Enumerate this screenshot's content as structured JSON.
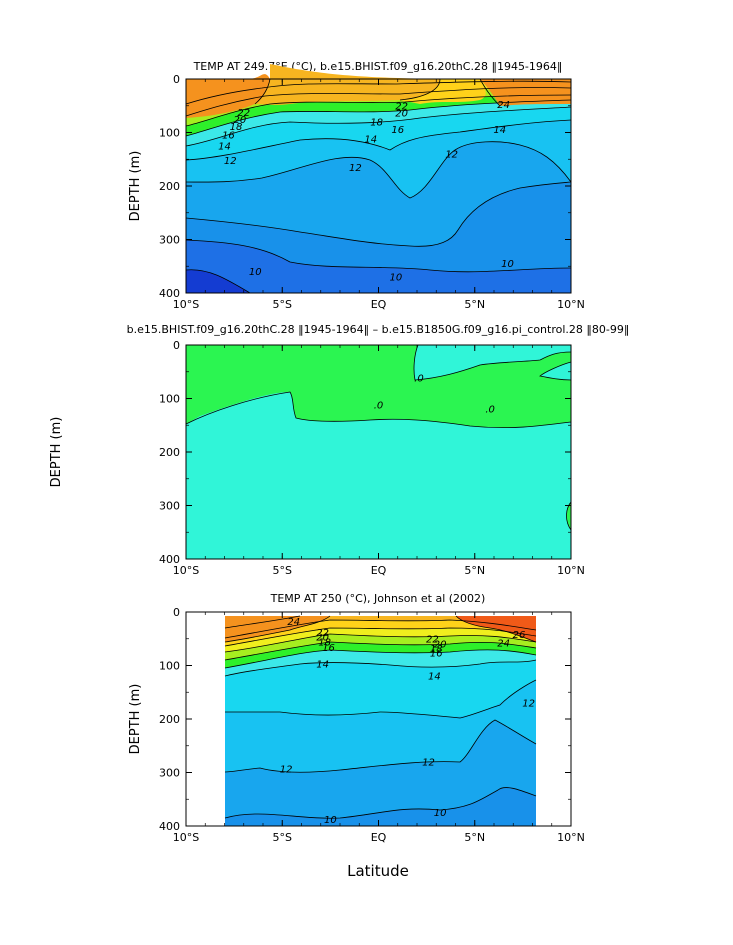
{
  "colors": {
    "t26": "#f05a18",
    "t24": "#f5921e",
    "t22": "#f7b520",
    "t20": "#ffd21a",
    "t18": "#f0ee1e",
    "t16": "#a6ee20",
    "t15": "#2ef02a",
    "t14": "#3ce8e8",
    "t13": "#18d7f0",
    "t12": "#18c2f2",
    "t11": "#18a6ee",
    "t10": "#1891ea",
    "t9": "#1e70e6",
    "t8": "#143cd2",
    "diff_zero": "#2bf551",
    "diff_neg": "#30f5d8"
  },
  "chart_data": [
    {
      "type": "contour",
      "title": "TEMP AT 249.7°E (°C), b.e15.BHIST.f09_g16.20thC.28 ‖1945-1964‖",
      "ylabel": "DEPTH  (m)",
      "xticks": [
        "10°S",
        "5°S",
        "EQ",
        "5°N",
        "10°N"
      ],
      "yticks": [
        "0",
        "100",
        "200",
        "300",
        "400"
      ],
      "xlim": [
        -10,
        10
      ],
      "ylim": [
        400,
        0
      ],
      "contour_labels": [
        {
          "text": "22",
          "x": 1.2,
          "y": 50
        },
        {
          "text": "20",
          "x": 1.2,
          "y": 64
        },
        {
          "text": "18",
          "x": -0.1,
          "y": 80
        },
        {
          "text": "16",
          "x": 1.0,
          "y": 94
        },
        {
          "text": "14",
          "x": -0.4,
          "y": 112
        },
        {
          "text": "12",
          "x": -1.2,
          "y": 165
        },
        {
          "text": "12",
          "x": 3.8,
          "y": 140
        },
        {
          "text": "10",
          "x": -6.4,
          "y": 360
        },
        {
          "text": "10",
          "x": 0.9,
          "y": 370
        },
        {
          "text": "10",
          "x": 6.7,
          "y": 345
        },
        {
          "text": "24",
          "x": 6.5,
          "y": 48
        },
        {
          "text": "22",
          "x": -7.0,
          "y": 63
        },
        {
          "text": "20",
          "x": -7.2,
          "y": 76
        },
        {
          "text": "18",
          "x": -7.4,
          "y": 89
        },
        {
          "text": "16",
          "x": -7.8,
          "y": 105
        },
        {
          "text": "14",
          "x": -8.0,
          "y": 125
        },
        {
          "text": "12",
          "x": -7.7,
          "y": 152
        },
        {
          "text": "14",
          "x": 6.3,
          "y": 94
        }
      ]
    },
    {
      "type": "contour",
      "title": "b.e15.BHIST.f09_g16.20thC.28 ‖1945-1964‖ – b.e15.B1850G.f09_g16.pi_control.28 ‖80-99‖",
      "ylabel": "DEPTH  (m)",
      "xticks": [
        "10°S",
        "5°S",
        "EQ",
        "5°N",
        "10°N"
      ],
      "yticks": [
        "0",
        "100",
        "200",
        "300",
        "400"
      ],
      "xlim": [
        -10,
        10
      ],
      "ylim": [
        400,
        0
      ],
      "contour_labels": [
        {
          "text": ".0",
          "x": 2.1,
          "y": 62
        },
        {
          "text": ".0",
          "x": 0.0,
          "y": 112
        },
        {
          "text": ".0",
          "x": 5.8,
          "y": 120
        }
      ]
    },
    {
      "type": "contour",
      "title": "TEMP AT 250 (°C), Johnson et al (2002)",
      "ylabel": "DEPTH  (m)",
      "xlabel": "Latitude",
      "xticks": [
        "10°S",
        "5°S",
        "EQ",
        "5°N",
        "10°N"
      ],
      "yticks": [
        "0",
        "100",
        "200",
        "300",
        "400"
      ],
      "xlim": [
        -10,
        10
      ],
      "ylim": [
        400,
        0
      ],
      "data_extent_x": [
        -8,
        8
      ],
      "contour_labels": [
        {
          "text": "24",
          "x": -4.4,
          "y": 18
        },
        {
          "text": "22",
          "x": -2.9,
          "y": 38
        },
        {
          "text": "20",
          "x": -2.9,
          "y": 47
        },
        {
          "text": "18",
          "x": -2.8,
          "y": 56
        },
        {
          "text": "16",
          "x": -2.6,
          "y": 66
        },
        {
          "text": "14",
          "x": -2.9,
          "y": 97
        },
        {
          "text": "22",
          "x": 2.8,
          "y": 50
        },
        {
          "text": "20",
          "x": 3.2,
          "y": 60
        },
        {
          "text": "18",
          "x": 3.0,
          "y": 68
        },
        {
          "text": "16",
          "x": 3.0,
          "y": 77
        },
        {
          "text": "24",
          "x": 6.5,
          "y": 58
        },
        {
          "text": "26",
          "x": 7.3,
          "y": 42
        },
        {
          "text": "14",
          "x": 2.9,
          "y": 120
        },
        {
          "text": "12",
          "x": 7.8,
          "y": 170
        },
        {
          "text": "12",
          "x": -4.8,
          "y": 293
        },
        {
          "text": "12",
          "x": 2.6,
          "y": 280
        },
        {
          "text": "10",
          "x": -2.5,
          "y": 388
        },
        {
          "text": "10",
          "x": 3.2,
          "y": 375
        }
      ]
    }
  ]
}
